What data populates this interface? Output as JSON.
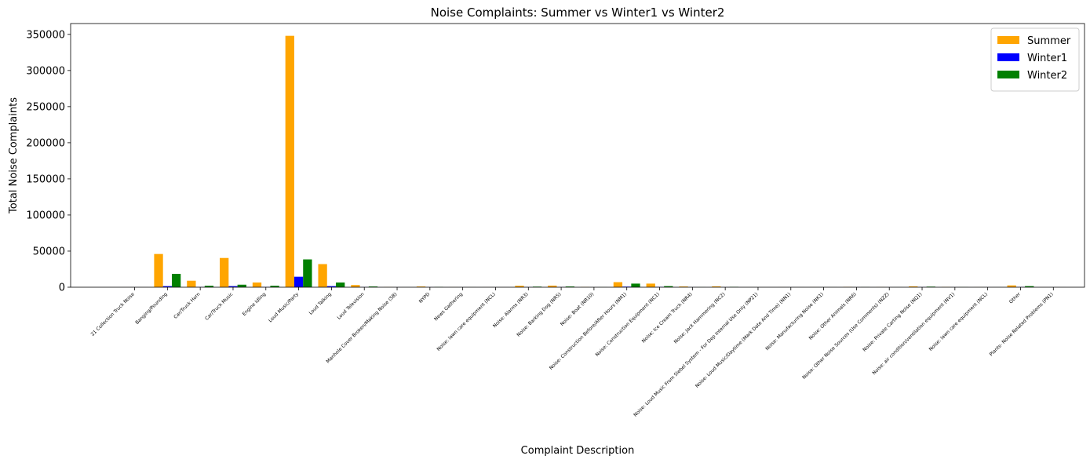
{
  "chart_data": {
    "type": "bar",
    "title": "Noise Complaints: Summer vs Winter1 vs Winter2",
    "xlabel": "Complaint Description",
    "ylabel": "Total Noise Complaints",
    "ylim": [
      0,
      365000
    ],
    "yticks": [
      0,
      50000,
      100000,
      150000,
      200000,
      250000,
      300000,
      350000
    ],
    "grid": false,
    "legend_position": "top-right",
    "categories": [
      "21 Collection Truck Noise",
      "Banging/Pounding",
      "Car/Truck Horn",
      "Car/Truck Music",
      "Engine Idling",
      "Loud Music/Party",
      "Loud Talking",
      "Loud Television",
      "Manhole Cover Broken/Making Noise (SB)",
      "NYPD",
      "News Gathering",
      "Noise:  lawn care equipment (NCL)",
      "Noise: Alarms (NR3)",
      "Noise: Barking Dog (NR5)",
      "Noise: Boat (NR10)",
      "Noise: Construction Before/After Hours (NM1)",
      "Noise: Construction Equipment (NC1)",
      "Noise: Ice Cream Truck (NR4)",
      "Noise: Jack Hammering (NC2)",
      "Noise: Loud Music From Siebel System - For Dep Internal Use Only (NP21)",
      "Noise: Loud Music/Daytime (Mark Date And Time) (NN1)",
      "Noise: Manufacturing Noise (NK1)",
      "Noise: Other Animals (NR6)",
      "Noise: Other Noise Sources (Use Comments) (NZZ)",
      "Noise: Private Carting Noise (NQ1)",
      "Noise: air condition/ventilation equipment (NV1)",
      "Noise: lawn care equipment (NCL)",
      "Other",
      "Plants- Noise Related Problems (PN1)"
    ],
    "series": [
      {
        "name": "Summer",
        "color": "#ffa500",
        "values": [
          30,
          46000,
          9000,
          40500,
          6500,
          348000,
          32000,
          3000,
          200,
          1000,
          100,
          50,
          2000,
          2200,
          300,
          7000,
          5000,
          1000,
          1200,
          10,
          50,
          100,
          400,
          150,
          1200,
          300,
          100,
          2500,
          30
        ]
      },
      {
        "name": "Winter1",
        "color": "#0000ff",
        "values": [
          10,
          1500,
          300,
          1500,
          300,
          14500,
          1500,
          200,
          20,
          100,
          10,
          10,
          200,
          200,
          20,
          800,
          500,
          50,
          100,
          5,
          10,
          20,
          50,
          20,
          200,
          50,
          20,
          300,
          10
        ]
      },
      {
        "name": "Winter2",
        "color": "#008000",
        "values": [
          20,
          18500,
          2000,
          3500,
          2000,
          38500,
          6500,
          1000,
          50,
          300,
          50,
          20,
          800,
          1000,
          100,
          5000,
          1500,
          100,
          500,
          5,
          20,
          50,
          200,
          50,
          800,
          150,
          50,
          1500,
          20
        ]
      }
    ]
  }
}
